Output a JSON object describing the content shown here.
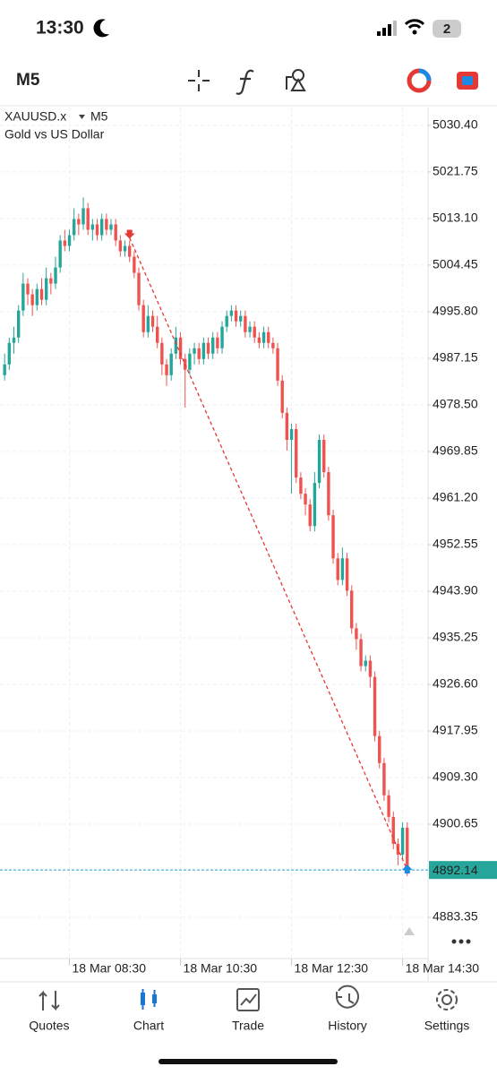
{
  "status_bar": {
    "time": "13:30",
    "battery": "2"
  },
  "toolbar": {
    "timeframe": "M5"
  },
  "chart_data": {
    "type": "candlestick",
    "symbol": "XAUUSD.x",
    "timeframe": "M5",
    "description": "Gold vs US Dollar",
    "up_color": "#26a69a",
    "down_color": "#ef5350",
    "grid": true,
    "ohlc": [
      [
        4984,
        4988,
        4983,
        4986
      ],
      [
        4986,
        4991,
        4985,
        4990
      ],
      [
        4990,
        4993,
        4988,
        4991
      ],
      [
        4991,
        4997,
        4990,
        4996
      ],
      [
        4996,
        5003,
        4995,
        5001
      ],
      [
        5001,
        5002,
        4997,
        4999
      ],
      [
        4999,
        5000,
        4995,
        4997
      ],
      [
        4997,
        5001,
        4996,
        5000
      ],
      [
        5000,
        5002,
        4997,
        4998
      ],
      [
        4998,
        5004,
        4997,
        5002
      ],
      [
        5002,
        5003,
        4999,
        5001
      ],
      [
        5001,
        5006,
        5000,
        5004
      ],
      [
        5004,
        5010,
        5003,
        5009
      ],
      [
        5009,
        5011,
        5007,
        5008
      ],
      [
        5008,
        5011,
        5007,
        5010
      ],
      [
        5010,
        5015,
        5009,
        5013
      ],
      [
        5013,
        5014,
        5010,
        5012
      ],
      [
        5012,
        5017,
        5011,
        5015
      ],
      [
        5015,
        5016,
        5010,
        5011
      ],
      [
        5011,
        5013,
        5009,
        5012
      ],
      [
        5012,
        5013,
        5009,
        5010
      ],
      [
        5010,
        5014,
        5009,
        5013
      ],
      [
        5013,
        5014,
        5010,
        5011
      ],
      [
        5011,
        5013,
        5010,
        5012
      ],
      [
        5012,
        5013,
        5008,
        5009
      ],
      [
        5009,
        5010,
        5006,
        5007
      ],
      [
        5007,
        5009,
        5006,
        5008
      ],
      [
        5008,
        5009,
        5005,
        5006
      ],
      [
        5006,
        5007,
        5002,
        5003
      ],
      [
        5003,
        5004,
        4996,
        4997
      ],
      [
        4997,
        4998,
        4991,
        4992
      ],
      [
        4992,
        4997,
        4991,
        4995
      ],
      [
        4995,
        4996,
        4992,
        4993
      ],
      [
        4993,
        4995,
        4989,
        4990
      ],
      [
        4990,
        4991,
        4984,
        4986
      ],
      [
        4986,
        4987,
        4982,
        4984
      ],
      [
        4984,
        4989,
        4983,
        4988
      ],
      [
        4988,
        4993,
        4987,
        4991
      ],
      [
        4991,
        4992,
        4986,
        4987
      ],
      [
        4987,
        4988,
        4978,
        4985
      ],
      [
        4985,
        4989,
        4984,
        4988
      ],
      [
        4988,
        4990,
        4986,
        4989
      ],
      [
        4989,
        4990,
        4986,
        4987
      ],
      [
        4987,
        4991,
        4986,
        4990
      ],
      [
        4990,
        4991,
        4987,
        4988
      ],
      [
        4988,
        4992,
        4987,
        4991
      ],
      [
        4991,
        4992,
        4988,
        4989
      ],
      [
        4989,
        4994,
        4988,
        4993
      ],
      [
        4993,
        4996,
        4992,
        4995
      ],
      [
        4995,
        4997,
        4994,
        4996
      ],
      [
        4996,
        4997,
        4993,
        4994
      ],
      [
        4994,
        4996,
        4993,
        4995
      ],
      [
        4995,
        4996,
        4991,
        4992
      ],
      [
        4992,
        4994,
        4991,
        4993
      ],
      [
        4993,
        4994,
        4990,
        4991
      ],
      [
        4991,
        4992,
        4989,
        4990
      ],
      [
        4990,
        4993,
        4989,
        4992
      ],
      [
        4992,
        4993,
        4989,
        4990
      ],
      [
        4990,
        4991,
        4988,
        4989
      ],
      [
        4989,
        4990,
        4982,
        4983
      ],
      [
        4983,
        4984,
        4976,
        4977
      ],
      [
        4977,
        4978,
        4970,
        4972
      ],
      [
        4972,
        4975,
        4962,
        4974
      ],
      [
        4974,
        4975,
        4964,
        4965
      ],
      [
        4965,
        4966,
        4961,
        4962
      ],
      [
        4962,
        4963,
        4958,
        4960
      ],
      [
        4960,
        4961,
        4955,
        4956
      ],
      [
        4956,
        4966,
        4955,
        4964
      ],
      [
        4964,
        4973,
        4963,
        4972
      ],
      [
        4972,
        4973,
        4965,
        4966
      ],
      [
        4966,
        4967,
        4957,
        4958
      ],
      [
        4958,
        4959,
        4949,
        4950
      ],
      [
        4950,
        4951,
        4945,
        4946
      ],
      [
        4946,
        4952,
        4945,
        4950
      ],
      [
        4950,
        4951,
        4943,
        4944
      ],
      [
        4944,
        4945,
        4936,
        4937
      ],
      [
        4937,
        4938,
        4933,
        4935
      ],
      [
        4935,
        4936,
        4929,
        4930
      ],
      [
        4930,
        4932,
        4929,
        4931
      ],
      [
        4931,
        4932,
        4926,
        4928
      ],
      [
        4928,
        4929,
        4916,
        4917
      ],
      [
        4917,
        4918,
        4911,
        4912
      ],
      [
        4912,
        4913,
        4905,
        4906
      ],
      [
        4906,
        4907,
        4901,
        4902
      ],
      [
        4902,
        4903,
        4896,
        4897
      ],
      [
        4897,
        4898,
        4893,
        4895
      ],
      [
        4895,
        4901,
        4894,
        4900
      ],
      [
        4900,
        4901,
        4891,
        4892.14
      ]
    ],
    "xlim": [
      -1,
      91.5
    ],
    "xticks": [
      {
        "value": 14,
        "label": "18 Mar 08:30"
      },
      {
        "value": 38,
        "label": "18 Mar 10:30"
      },
      {
        "value": 62,
        "label": "18 Mar 12:30"
      },
      {
        "value": 86,
        "label": "18 Mar 14:30"
      }
    ],
    "ylim": [
      4875.7,
      5033.7
    ],
    "yticks": [
      {
        "value": 5030.4,
        "label": "5030.40"
      },
      5021.75,
      {
        "value": 5013.1,
        "label": "5013.10"
      },
      5004.45,
      {
        "value": 4995.8,
        "label": "4995.80"
      },
      4987.15,
      {
        "value": 4978.5,
        "label": "4978.50"
      },
      4969.85,
      {
        "value": 4961.2,
        "label": "4961.20"
      },
      4952.55,
      {
        "value": 4943.9,
        "label": "4943.90"
      },
      4935.25,
      {
        "value": 4926.6,
        "label": "4926.60"
      },
      4917.95,
      {
        "value": 4909.3,
        "label": "4909.30"
      },
      4900.65,
      4883.35
    ],
    "current_price": 4892.14,
    "current_price_color": "#26a69a",
    "trade_line": {
      "x": [
        27,
        87
      ],
      "y": [
        5009.5,
        4892.14
      ],
      "color": "#e53935"
    }
  },
  "tab_bar": {
    "items": [
      "Quotes",
      "Chart",
      "Trade",
      "History",
      "Settings"
    ],
    "active": 1
  }
}
